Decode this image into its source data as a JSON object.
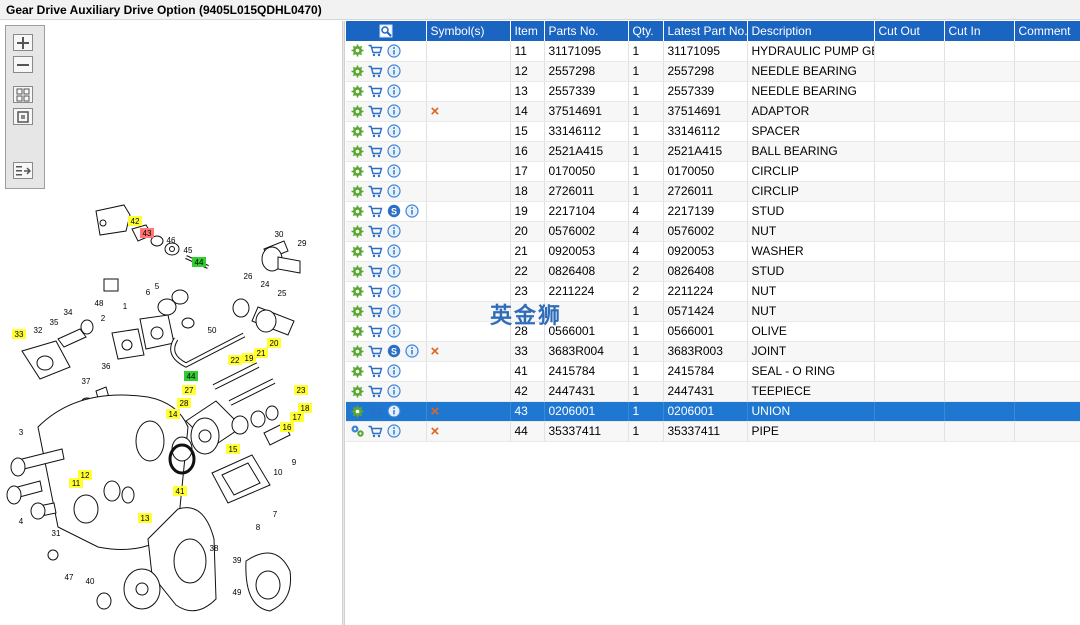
{
  "window": {
    "title": "Gear Drive Auxiliary Drive Option (9405L015QDHL0470)"
  },
  "toolbar": {
    "buttons": [
      {
        "name": "zoom-in-button",
        "icon": "plus-icon"
      },
      {
        "name": "zoom-out-button",
        "icon": "minus-icon"
      },
      {
        "name": "fit-all-button",
        "icon": "grid-icon"
      },
      {
        "name": "fit-page-button",
        "icon": "square-icon"
      },
      {
        "name": "export-button",
        "icon": "list-arrow-icon"
      }
    ]
  },
  "diagram": {
    "callouts": [
      "42",
      "43",
      "46",
      "45",
      "44",
      "30",
      "29",
      "48",
      "5",
      "6",
      "26",
      "24",
      "25",
      "1",
      "2",
      "34",
      "35",
      "32",
      "33",
      "50",
      "22",
      "19",
      "21",
      "20",
      "44",
      "36",
      "37",
      "27",
      "23",
      "28",
      "14",
      "18",
      "17",
      "16",
      "3",
      "12",
      "11",
      "15",
      "41",
      "9",
      "10",
      "8",
      "13",
      "7",
      "4",
      "31",
      "38",
      "39",
      "47",
      "40",
      "49"
    ]
  },
  "grid": {
    "columns": [
      "",
      "Symbol(s)",
      "Item",
      "Parts No.",
      "Qty.",
      "Latest Part No.",
      "Description",
      "Cut Out",
      "Cut In",
      "Comment"
    ],
    "rows": [
      {
        "item": "11",
        "part": "31171095",
        "qty": "1",
        "latest": "31171095",
        "desc": "HYDRAULIC PUMP GEAR",
        "s_icon": false,
        "symbol": "",
        "multi": false,
        "selected": false
      },
      {
        "item": "12",
        "part": "2557298",
        "qty": "1",
        "latest": "2557298",
        "desc": "NEEDLE BEARING",
        "s_icon": false,
        "symbol": "",
        "multi": false,
        "selected": false
      },
      {
        "item": "13",
        "part": "2557339",
        "qty": "1",
        "latest": "2557339",
        "desc": "NEEDLE BEARING",
        "s_icon": false,
        "symbol": "",
        "multi": false,
        "selected": false
      },
      {
        "item": "14",
        "part": "37514691",
        "qty": "1",
        "latest": "37514691",
        "desc": "ADAPTOR",
        "s_icon": false,
        "symbol": "×",
        "multi": false,
        "selected": false
      },
      {
        "item": "15",
        "part": "33146112",
        "qty": "1",
        "latest": "33146112",
        "desc": "SPACER",
        "s_icon": false,
        "symbol": "",
        "multi": false,
        "selected": false
      },
      {
        "item": "16",
        "part": "2521A415",
        "qty": "1",
        "latest": "2521A415",
        "desc": "BALL BEARING",
        "s_icon": false,
        "symbol": "",
        "multi": false,
        "selected": false
      },
      {
        "item": "17",
        "part": "0170050",
        "qty": "1",
        "latest": "0170050",
        "desc": "CIRCLIP",
        "s_icon": false,
        "symbol": "",
        "multi": false,
        "selected": false
      },
      {
        "item": "18",
        "part": "2726011",
        "qty": "1",
        "latest": "2726011",
        "desc": "CIRCLIP",
        "s_icon": false,
        "symbol": "",
        "multi": false,
        "selected": false
      },
      {
        "item": "19",
        "part": "2217104",
        "qty": "4",
        "latest": "2217139",
        "desc": "STUD",
        "s_icon": true,
        "symbol": "",
        "multi": false,
        "selected": false
      },
      {
        "item": "20",
        "part": "0576002",
        "qty": "4",
        "latest": "0576002",
        "desc": "NUT",
        "s_icon": false,
        "symbol": "",
        "multi": false,
        "selected": false
      },
      {
        "item": "21",
        "part": "0920053",
        "qty": "4",
        "latest": "0920053",
        "desc": "WASHER",
        "s_icon": false,
        "symbol": "",
        "multi": false,
        "selected": false
      },
      {
        "item": "22",
        "part": "0826408",
        "qty": "2",
        "latest": "0826408",
        "desc": "STUD",
        "s_icon": false,
        "symbol": "",
        "multi": false,
        "selected": false
      },
      {
        "item": "23",
        "part": "2211224",
        "qty": "2",
        "latest": "2211224",
        "desc": "NUT",
        "s_icon": false,
        "symbol": "",
        "multi": false,
        "selected": false
      },
      {
        "item": "",
        "part": "",
        "qty": "1",
        "latest": "0571424",
        "desc": "NUT",
        "s_icon": false,
        "symbol": "",
        "multi": false,
        "selected": false
      },
      {
        "item": "28",
        "part": "0566001",
        "qty": "1",
        "latest": "0566001",
        "desc": "OLIVE",
        "s_icon": false,
        "symbol": "",
        "multi": false,
        "selected": false
      },
      {
        "item": "33",
        "part": "3683R004",
        "qty": "1",
        "latest": "3683R003",
        "desc": "JOINT",
        "s_icon": true,
        "symbol": "×",
        "multi": false,
        "selected": false
      },
      {
        "item": "41",
        "part": "2415784",
        "qty": "1",
        "latest": "2415784",
        "desc": "SEAL - O RING",
        "s_icon": false,
        "symbol": "",
        "multi": false,
        "selected": false
      },
      {
        "item": "42",
        "part": "2447431",
        "qty": "1",
        "latest": "2447431",
        "desc": "TEEPIECE",
        "s_icon": false,
        "symbol": "",
        "multi": false,
        "selected": false
      },
      {
        "item": "43",
        "part": "0206001",
        "qty": "1",
        "latest": "0206001",
        "desc": "UNION",
        "s_icon": false,
        "symbol": "×",
        "multi": false,
        "selected": true
      },
      {
        "item": "44",
        "part": "35337411",
        "qty": "1",
        "latest": "35337411",
        "desc": "PIPE",
        "s_icon": false,
        "symbol": "×",
        "multi": true,
        "selected": false
      }
    ]
  },
  "watermark": "英金狮",
  "colors": {
    "header": "#1a64c2",
    "selected": "#1e78d2",
    "gear": "#5aa832",
    "cart": "#2a6fc4",
    "info": "#3d85d6",
    "x_mark": "#e0661f",
    "callout_yellow": "#ffff33",
    "callout_green": "#33cc33",
    "callout_red": "#ff7777"
  }
}
